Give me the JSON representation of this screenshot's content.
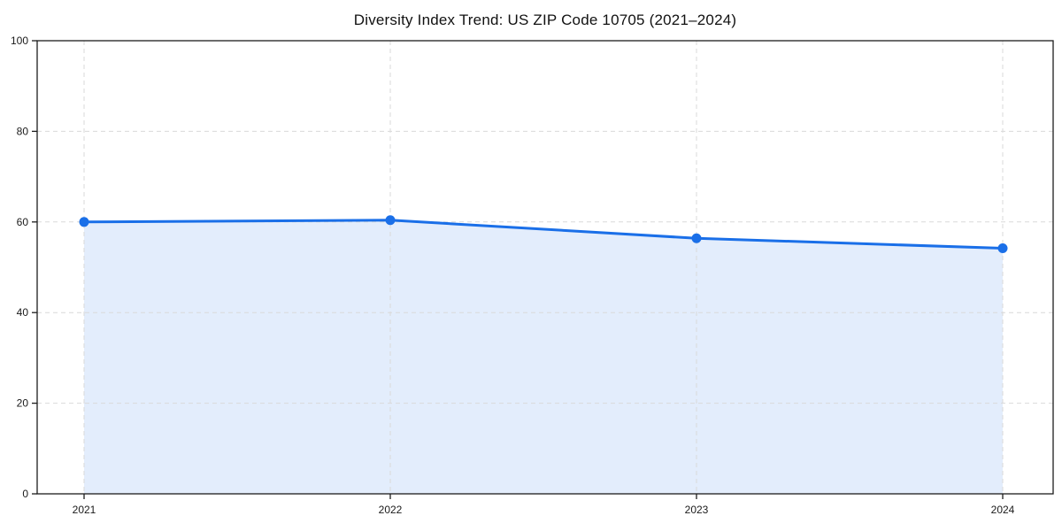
{
  "chart_data": {
    "type": "area",
    "title": "Diversity Index Trend: US ZIP Code 10705 (2021–2024)",
    "categories": [
      "2021",
      "2022",
      "2023",
      "2024"
    ],
    "series": [
      {
        "name": "Diversity Index",
        "values": [
          60.0,
          60.4,
          56.4,
          54.2
        ]
      }
    ],
    "xlabel": "",
    "ylabel": "",
    "ylim": [
      0,
      100
    ],
    "yticks": [
      0,
      20,
      40,
      60,
      80,
      100
    ],
    "grid": "dashed",
    "legend": "none",
    "marker": "circle"
  },
  "colors": {
    "line": "#1a6fe8",
    "fill_opacity": 0.12,
    "grid": "#d9d9d9",
    "spine": "#1c1c1c",
    "tick_label": "#1a1a1a",
    "background": "#ffffff"
  }
}
